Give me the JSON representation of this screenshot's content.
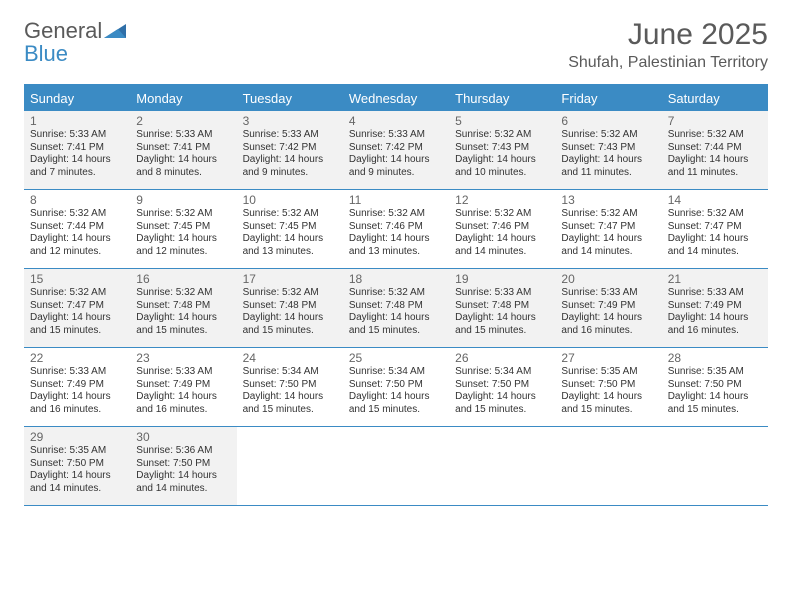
{
  "brand": {
    "part1": "General",
    "part2": "Blue"
  },
  "title": "June 2025",
  "location": "Shufah, Palestinian Territory",
  "colors": {
    "header_blue": "#3b8bc4",
    "shaded": "#f2f2f2",
    "text": "#333333",
    "muted": "#666666",
    "title_gray": "#5a5a5a",
    "background": "#ffffff"
  },
  "typography": {
    "title_fontsize": 30,
    "location_fontsize": 16,
    "dayhead_fontsize": 13,
    "daynum_fontsize": 12,
    "body_fontsize": 10
  },
  "dayNames": [
    "Sunday",
    "Monday",
    "Tuesday",
    "Wednesday",
    "Thursday",
    "Friday",
    "Saturday"
  ],
  "weeks": [
    {
      "shaded": true,
      "days": [
        {
          "n": "1",
          "sunrise": "5:33 AM",
          "sunset": "7:41 PM",
          "daylight": "14 hours and 7 minutes."
        },
        {
          "n": "2",
          "sunrise": "5:33 AM",
          "sunset": "7:41 PM",
          "daylight": "14 hours and 8 minutes."
        },
        {
          "n": "3",
          "sunrise": "5:33 AM",
          "sunset": "7:42 PM",
          "daylight": "14 hours and 9 minutes."
        },
        {
          "n": "4",
          "sunrise": "5:33 AM",
          "sunset": "7:42 PM",
          "daylight": "14 hours and 9 minutes."
        },
        {
          "n": "5",
          "sunrise": "5:32 AM",
          "sunset": "7:43 PM",
          "daylight": "14 hours and 10 minutes."
        },
        {
          "n": "6",
          "sunrise": "5:32 AM",
          "sunset": "7:43 PM",
          "daylight": "14 hours and 11 minutes."
        },
        {
          "n": "7",
          "sunrise": "5:32 AM",
          "sunset": "7:44 PM",
          "daylight": "14 hours and 11 minutes."
        }
      ]
    },
    {
      "shaded": false,
      "days": [
        {
          "n": "8",
          "sunrise": "5:32 AM",
          "sunset": "7:44 PM",
          "daylight": "14 hours and 12 minutes."
        },
        {
          "n": "9",
          "sunrise": "5:32 AM",
          "sunset": "7:45 PM",
          "daylight": "14 hours and 12 minutes."
        },
        {
          "n": "10",
          "sunrise": "5:32 AM",
          "sunset": "7:45 PM",
          "daylight": "14 hours and 13 minutes."
        },
        {
          "n": "11",
          "sunrise": "5:32 AM",
          "sunset": "7:46 PM",
          "daylight": "14 hours and 13 minutes."
        },
        {
          "n": "12",
          "sunrise": "5:32 AM",
          "sunset": "7:46 PM",
          "daylight": "14 hours and 14 minutes."
        },
        {
          "n": "13",
          "sunrise": "5:32 AM",
          "sunset": "7:47 PM",
          "daylight": "14 hours and 14 minutes."
        },
        {
          "n": "14",
          "sunrise": "5:32 AM",
          "sunset": "7:47 PM",
          "daylight": "14 hours and 14 minutes."
        }
      ]
    },
    {
      "shaded": true,
      "days": [
        {
          "n": "15",
          "sunrise": "5:32 AM",
          "sunset": "7:47 PM",
          "daylight": "14 hours and 15 minutes."
        },
        {
          "n": "16",
          "sunrise": "5:32 AM",
          "sunset": "7:48 PM",
          "daylight": "14 hours and 15 minutes."
        },
        {
          "n": "17",
          "sunrise": "5:32 AM",
          "sunset": "7:48 PM",
          "daylight": "14 hours and 15 minutes."
        },
        {
          "n": "18",
          "sunrise": "5:32 AM",
          "sunset": "7:48 PM",
          "daylight": "14 hours and 15 minutes."
        },
        {
          "n": "19",
          "sunrise": "5:33 AM",
          "sunset": "7:48 PM",
          "daylight": "14 hours and 15 minutes."
        },
        {
          "n": "20",
          "sunrise": "5:33 AM",
          "sunset": "7:49 PM",
          "daylight": "14 hours and 16 minutes."
        },
        {
          "n": "21",
          "sunrise": "5:33 AM",
          "sunset": "7:49 PM",
          "daylight": "14 hours and 16 minutes."
        }
      ]
    },
    {
      "shaded": false,
      "days": [
        {
          "n": "22",
          "sunrise": "5:33 AM",
          "sunset": "7:49 PM",
          "daylight": "14 hours and 16 minutes."
        },
        {
          "n": "23",
          "sunrise": "5:33 AM",
          "sunset": "7:49 PM",
          "daylight": "14 hours and 16 minutes."
        },
        {
          "n": "24",
          "sunrise": "5:34 AM",
          "sunset": "7:50 PM",
          "daylight": "14 hours and 15 minutes."
        },
        {
          "n": "25",
          "sunrise": "5:34 AM",
          "sunset": "7:50 PM",
          "daylight": "14 hours and 15 minutes."
        },
        {
          "n": "26",
          "sunrise": "5:34 AM",
          "sunset": "7:50 PM",
          "daylight": "14 hours and 15 minutes."
        },
        {
          "n": "27",
          "sunrise": "5:35 AM",
          "sunset": "7:50 PM",
          "daylight": "14 hours and 15 minutes."
        },
        {
          "n": "28",
          "sunrise": "5:35 AM",
          "sunset": "7:50 PM",
          "daylight": "14 hours and 15 minutes."
        }
      ]
    },
    {
      "shaded": true,
      "days": [
        {
          "n": "29",
          "sunrise": "5:35 AM",
          "sunset": "7:50 PM",
          "daylight": "14 hours and 14 minutes."
        },
        {
          "n": "30",
          "sunrise": "5:36 AM",
          "sunset": "7:50 PM",
          "daylight": "14 hours and 14 minutes."
        },
        {
          "empty": true
        },
        {
          "empty": true
        },
        {
          "empty": true
        },
        {
          "empty": true
        },
        {
          "empty": true
        }
      ]
    }
  ],
  "labels": {
    "sunrise": "Sunrise: ",
    "sunset": "Sunset: ",
    "daylight": "Daylight: "
  }
}
